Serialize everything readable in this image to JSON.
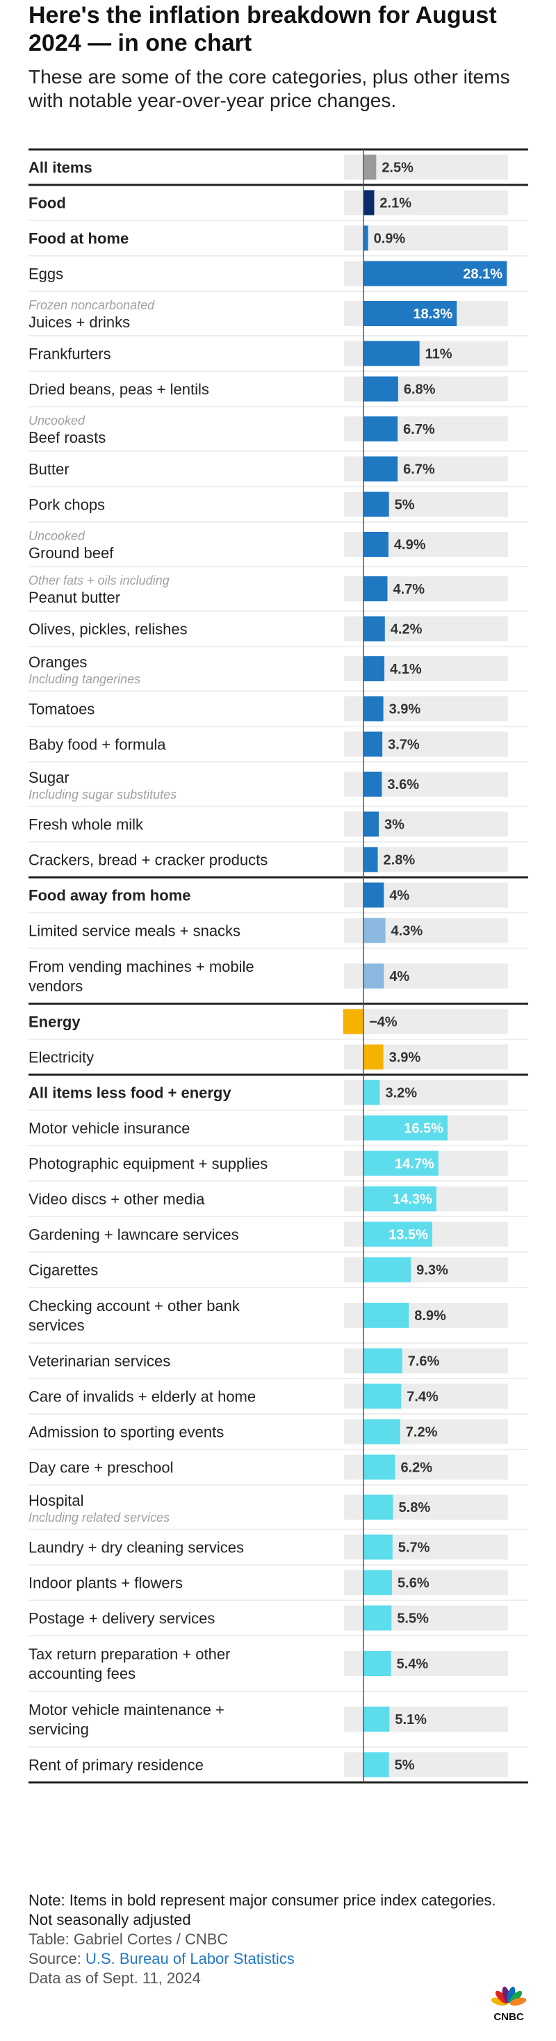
{
  "header": {
    "title": "Here's the inflation breakdown for August 2024 — in one chart",
    "subtitle": "These are some of the core categories, plus other items with notable year-over-year price changes."
  },
  "colors": {
    "all_items": "#9a9a9a",
    "food_major": "#0b2c6b",
    "food": "#1f78c1",
    "food_away": "#1f78c1",
    "food_away_light": "#8ab8de",
    "energy": "#f5b300",
    "core": "#5ddcec",
    "track": "#ececec"
  },
  "chart_data": {
    "type": "bar",
    "orientation": "horizontal",
    "unit": "% change year-over-year",
    "xlim": [
      -4,
      28.1
    ],
    "rows": [
      {
        "label": "All items",
        "sublabel": "",
        "sub_above": false,
        "value": 2.5,
        "value_label": "2.5%",
        "bold": true,
        "group": "all_items",
        "color": "#9a9a9a"
      },
      {
        "label": "Food",
        "sublabel": "",
        "sub_above": false,
        "value": 2.1,
        "value_label": "2.1%",
        "bold": true,
        "group": "food",
        "color": "#0b2c6b"
      },
      {
        "label": "Food at home",
        "sublabel": "",
        "sub_above": false,
        "value": 0.9,
        "value_label": "0.9%",
        "bold": true,
        "group": "food",
        "color": "#1f78c1"
      },
      {
        "label": "Eggs",
        "sublabel": "",
        "sub_above": false,
        "value": 28.1,
        "value_label": "28.1%",
        "bold": false,
        "group": "food",
        "color": "#1f78c1"
      },
      {
        "label": "Juices + drinks",
        "sublabel": "Frozen noncarbonated",
        "sub_above": true,
        "value": 18.3,
        "value_label": "18.3%",
        "bold": false,
        "group": "food",
        "color": "#1f78c1"
      },
      {
        "label": "Frankfurters",
        "sublabel": "",
        "sub_above": false,
        "value": 11,
        "value_label": "11%",
        "bold": false,
        "group": "food",
        "color": "#1f78c1"
      },
      {
        "label": "Dried beans, peas + lentils",
        "sublabel": "",
        "sub_above": false,
        "value": 6.8,
        "value_label": "6.8%",
        "bold": false,
        "group": "food",
        "color": "#1f78c1"
      },
      {
        "label": "Beef roasts",
        "sublabel": "Uncooked",
        "sub_above": true,
        "value": 6.7,
        "value_label": "6.7%",
        "bold": false,
        "group": "food",
        "color": "#1f78c1"
      },
      {
        "label": "Butter",
        "sublabel": "",
        "sub_above": false,
        "value": 6.7,
        "value_label": "6.7%",
        "bold": false,
        "group": "food",
        "color": "#1f78c1"
      },
      {
        "label": "Pork chops",
        "sublabel": "",
        "sub_above": false,
        "value": 5,
        "value_label": "5%",
        "bold": false,
        "group": "food",
        "color": "#1f78c1"
      },
      {
        "label": "Ground beef",
        "sublabel": "Uncooked",
        "sub_above": true,
        "value": 4.9,
        "value_label": "4.9%",
        "bold": false,
        "group": "food",
        "color": "#1f78c1"
      },
      {
        "label": "Peanut butter",
        "sublabel": "Other fats + oils including",
        "sub_above": true,
        "value": 4.7,
        "value_label": "4.7%",
        "bold": false,
        "group": "food",
        "color": "#1f78c1"
      },
      {
        "label": "Olives, pickles, relishes",
        "sublabel": "",
        "sub_above": false,
        "value": 4.2,
        "value_label": "4.2%",
        "bold": false,
        "group": "food",
        "color": "#1f78c1"
      },
      {
        "label": "Oranges",
        "sublabel": "Including tangerines",
        "sub_above": false,
        "value": 4.1,
        "value_label": "4.1%",
        "bold": false,
        "group": "food",
        "color": "#1f78c1"
      },
      {
        "label": "Tomatoes",
        "sublabel": "",
        "sub_above": false,
        "value": 3.9,
        "value_label": "3.9%",
        "bold": false,
        "group": "food",
        "color": "#1f78c1"
      },
      {
        "label": "Baby food + formula",
        "sublabel": "",
        "sub_above": false,
        "value": 3.7,
        "value_label": "3.7%",
        "bold": false,
        "group": "food",
        "color": "#1f78c1"
      },
      {
        "label": "Sugar",
        "sublabel": "Including sugar substitutes",
        "sub_above": false,
        "value": 3.6,
        "value_label": "3.6%",
        "bold": false,
        "group": "food",
        "color": "#1f78c1"
      },
      {
        "label": "Fresh whole milk",
        "sublabel": "",
        "sub_above": false,
        "value": 3,
        "value_label": "3%",
        "bold": false,
        "group": "food",
        "color": "#1f78c1"
      },
      {
        "label": "Crackers, bread + cracker products",
        "sublabel": "",
        "sub_above": false,
        "value": 2.8,
        "value_label": "2.8%",
        "bold": false,
        "group": "food",
        "color": "#1f78c1"
      },
      {
        "label": "Food away from home",
        "sublabel": "",
        "sub_above": false,
        "value": 4,
        "value_label": "4%",
        "bold": true,
        "group": "food_away",
        "color": "#1f78c1"
      },
      {
        "label": "Limited service meals + snacks",
        "sublabel": "",
        "sub_above": false,
        "value": 4.3,
        "value_label": "4.3%",
        "bold": false,
        "group": "food_away",
        "color": "#8ab8de"
      },
      {
        "label": "From vending machines + mobile vendors",
        "sublabel": "",
        "sub_above": false,
        "value": 4,
        "value_label": "4%",
        "bold": false,
        "group": "food_away",
        "color": "#8ab8de"
      },
      {
        "label": "Energy",
        "sublabel": "",
        "sub_above": false,
        "value": -4,
        "value_label": "−4%",
        "bold": true,
        "group": "energy",
        "color": "#f5b300"
      },
      {
        "label": "Electricity",
        "sublabel": "",
        "sub_above": false,
        "value": 3.9,
        "value_label": "3.9%",
        "bold": false,
        "group": "energy",
        "color": "#f5b300"
      },
      {
        "label": "All items less food + energy",
        "sublabel": "",
        "sub_above": false,
        "value": 3.2,
        "value_label": "3.2%",
        "bold": true,
        "group": "core",
        "color": "#5ddcec"
      },
      {
        "label": "Motor vehicle insurance",
        "sublabel": "",
        "sub_above": false,
        "value": 16.5,
        "value_label": "16.5%",
        "bold": false,
        "group": "core",
        "color": "#5ddcec"
      },
      {
        "label": "Photographic equipment + supplies",
        "sublabel": "",
        "sub_above": false,
        "value": 14.7,
        "value_label": "14.7%",
        "bold": false,
        "group": "core",
        "color": "#5ddcec"
      },
      {
        "label": "Video discs + other media",
        "sublabel": "",
        "sub_above": false,
        "value": 14.3,
        "value_label": "14.3%",
        "bold": false,
        "group": "core",
        "color": "#5ddcec"
      },
      {
        "label": "Gardening + lawncare services",
        "sublabel": "",
        "sub_above": false,
        "value": 13.5,
        "value_label": "13.5%",
        "bold": false,
        "group": "core",
        "color": "#5ddcec"
      },
      {
        "label": "Cigarettes",
        "sublabel": "",
        "sub_above": false,
        "value": 9.3,
        "value_label": "9.3%",
        "bold": false,
        "group": "core",
        "color": "#5ddcec"
      },
      {
        "label": "Checking account + other bank services",
        "sublabel": "",
        "sub_above": false,
        "value": 8.9,
        "value_label": "8.9%",
        "bold": false,
        "group": "core",
        "color": "#5ddcec"
      },
      {
        "label": "Veterinarian services",
        "sublabel": "",
        "sub_above": false,
        "value": 7.6,
        "value_label": "7.6%",
        "bold": false,
        "group": "core",
        "color": "#5ddcec"
      },
      {
        "label": "Care of invalids + elderly at home",
        "sublabel": "",
        "sub_above": false,
        "value": 7.4,
        "value_label": "7.4%",
        "bold": false,
        "group": "core",
        "color": "#5ddcec"
      },
      {
        "label": "Admission to sporting events",
        "sublabel": "",
        "sub_above": false,
        "value": 7.2,
        "value_label": "7.2%",
        "bold": false,
        "group": "core",
        "color": "#5ddcec"
      },
      {
        "label": "Day care + preschool",
        "sublabel": "",
        "sub_above": false,
        "value": 6.2,
        "value_label": "6.2%",
        "bold": false,
        "group": "core",
        "color": "#5ddcec"
      },
      {
        "label": "Hospital",
        "sublabel": "Including related services",
        "sub_above": false,
        "value": 5.8,
        "value_label": "5.8%",
        "bold": false,
        "group": "core",
        "color": "#5ddcec"
      },
      {
        "label": "Laundry + dry cleaning services",
        "sublabel": "",
        "sub_above": false,
        "value": 5.7,
        "value_label": "5.7%",
        "bold": false,
        "group": "core",
        "color": "#5ddcec"
      },
      {
        "label": "Indoor plants + flowers",
        "sublabel": "",
        "sub_above": false,
        "value": 5.6,
        "value_label": "5.6%",
        "bold": false,
        "group": "core",
        "color": "#5ddcec"
      },
      {
        "label": "Postage + delivery services",
        "sublabel": "",
        "sub_above": false,
        "value": 5.5,
        "value_label": "5.5%",
        "bold": false,
        "group": "core",
        "color": "#5ddcec"
      },
      {
        "label": "Tax return preparation + other accounting fees",
        "sublabel": "",
        "sub_above": false,
        "value": 5.4,
        "value_label": "5.4%",
        "bold": false,
        "group": "core",
        "color": "#5ddcec"
      },
      {
        "label": "Motor vehicle maintenance + servicing",
        "sublabel": "",
        "sub_above": false,
        "value": 5.1,
        "value_label": "5.1%",
        "bold": false,
        "group": "core",
        "color": "#5ddcec"
      },
      {
        "label": "Rent of primary residence",
        "sublabel": "",
        "sub_above": false,
        "value": 5,
        "value_label": "5%",
        "bold": false,
        "group": "core",
        "color": "#5ddcec"
      }
    ]
  },
  "footer": {
    "note": "Note: Items in bold represent major consumer price index categories.",
    "adjust": "Not seasonally adjusted",
    "credit": "Table: Gabriel Cortes / CNBC",
    "source_prefix": "Source: ",
    "source_link": "U.S. Bureau of Labor Statistics",
    "date": "Data as of Sept. 11, 2024",
    "logo_text": "CNBC"
  }
}
